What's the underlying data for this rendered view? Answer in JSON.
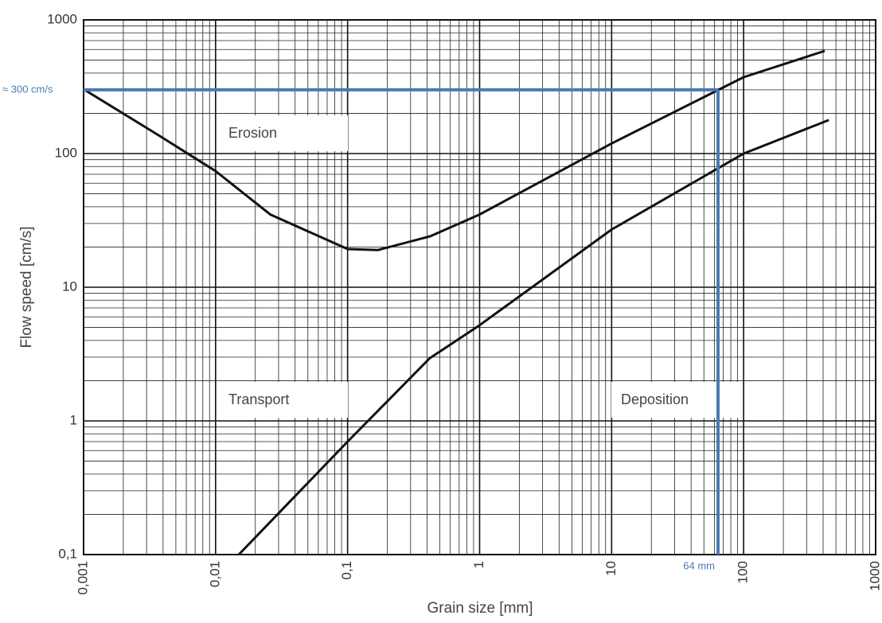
{
  "chart_data": {
    "type": "line",
    "xlabel": "Grain size [mm]",
    "ylabel": "Flow speed [cm/s]",
    "xscale": "log",
    "yscale": "log",
    "grid": true,
    "minor_grid": true,
    "xlim": [
      0.001,
      1000
    ],
    "ylim": [
      0.1,
      1000
    ],
    "xticks": [
      {
        "value": 0.001,
        "label": "0,001"
      },
      {
        "value": 0.01,
        "label": "0,01"
      },
      {
        "value": 0.1,
        "label": "0,1"
      },
      1,
      10,
      100,
      1000
    ],
    "yticks": [
      {
        "value": 0.1,
        "label": "0,1"
      },
      1,
      10,
      100,
      1000
    ],
    "series": [
      {
        "color": "#111111",
        "x": [
          0.001,
          0.0037,
          0.01,
          0.026,
          0.1,
          0.17,
          0.42,
          1,
          10,
          100,
          411
        ],
        "values": [
          303,
          137,
          74,
          35,
          19.3,
          19,
          24,
          35,
          119,
          373,
          586
        ]
      },
      {
        "color": "#111111",
        "x": [
          0.015,
          0.1,
          0.42,
          1,
          10,
          100,
          442
        ],
        "values": [
          0.1,
          0.7,
          2.95,
          5.2,
          27,
          100,
          178
        ]
      }
    ],
    "annotations": [
      "Erosion",
      "Transport",
      "Deposition"
    ],
    "reference_lines": {
      "color": "#4a7ab5",
      "x": 64,
      "y": 300,
      "x_label": "64 mm",
      "y_label": "≈ 300 cm/s"
    }
  }
}
